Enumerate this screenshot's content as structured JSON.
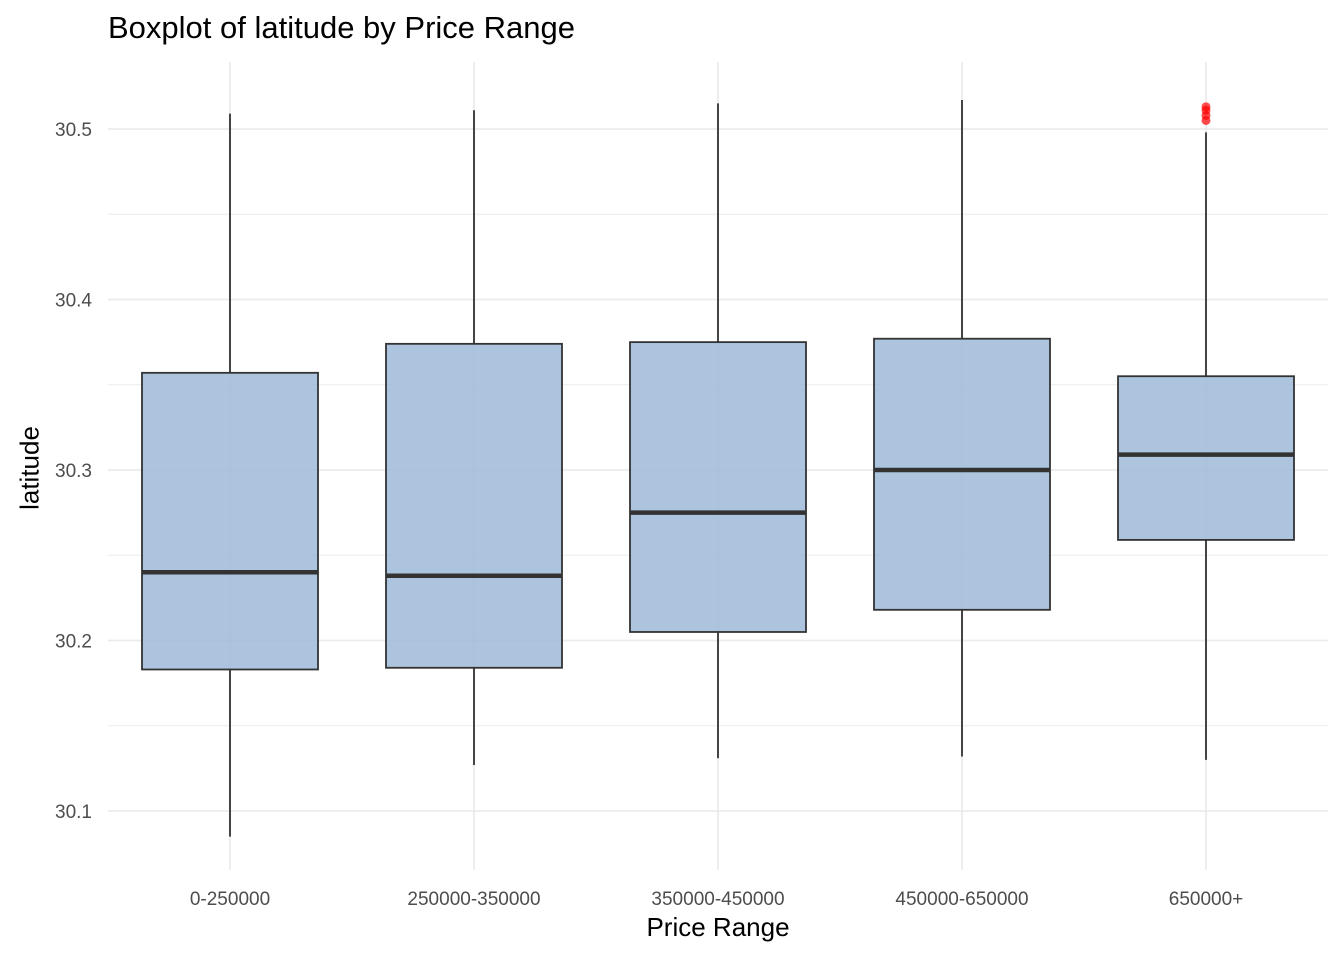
{
  "chart_data": {
    "type": "boxplot",
    "title": "Boxplot of latitude by Price Range",
    "xlabel": "Price Range",
    "ylabel": "latitude",
    "ylim": [
      30.065,
      30.54
    ],
    "y_ticks": [
      30.1,
      30.2,
      30.3,
      30.4,
      30.5
    ],
    "y_tick_labels": [
      "30.1",
      "30.2",
      "30.3",
      "30.4",
      "30.5"
    ],
    "grid": true,
    "categories": [
      "0-250000",
      "250000-350000",
      "350000-450000",
      "450000-650000",
      "650000+"
    ],
    "boxes": [
      {
        "category": "0-250000",
        "whisker_low": 30.085,
        "q1": 30.183,
        "median": 30.24,
        "q3": 30.357,
        "whisker_high": 30.509,
        "outliers": []
      },
      {
        "category": "250000-350000",
        "whisker_low": 30.127,
        "q1": 30.184,
        "median": 30.238,
        "q3": 30.374,
        "whisker_high": 30.511,
        "outliers": []
      },
      {
        "category": "350000-450000",
        "whisker_low": 30.131,
        "q1": 30.205,
        "median": 30.275,
        "q3": 30.375,
        "whisker_high": 30.515,
        "outliers": []
      },
      {
        "category": "450000-650000",
        "whisker_low": 30.132,
        "q1": 30.218,
        "median": 30.3,
        "q3": 30.377,
        "whisker_high": 30.517,
        "outliers": []
      },
      {
        "category": "650000+",
        "whisker_low": 30.13,
        "q1": 30.259,
        "median": 30.309,
        "q3": 30.355,
        "whisker_high": 30.498,
        "outliers": [
          30.505,
          30.508,
          30.511,
          30.513
        ]
      }
    ],
    "colors": {
      "box_fill": "#9dbad8",
      "box_border": "#333333",
      "whisker": "#1a1a1a",
      "median": "#333333",
      "outlier": "#ff0000",
      "grid": "#ebebeb"
    }
  }
}
